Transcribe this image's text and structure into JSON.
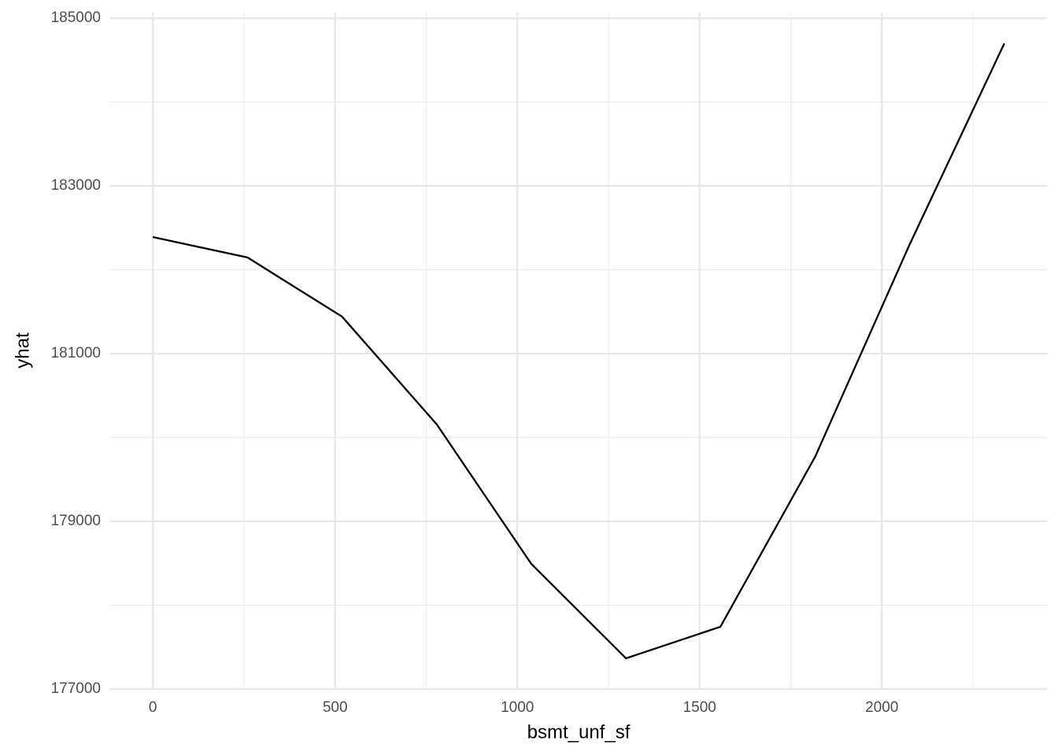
{
  "chart_data": {
    "type": "line",
    "x_label": "bsmt_unf_sf",
    "y_label": "yhat",
    "x": [
      0,
      260,
      519,
      779,
      1038,
      1298,
      1557,
      1817,
      2076,
      2336
    ],
    "series": [
      {
        "name": "yhat",
        "color": "#000000",
        "values": [
          182390,
          182146,
          181441,
          180155,
          178493,
          177366,
          177742,
          179770,
          182300,
          184700
        ]
      }
    ],
    "xlim": [
      -117,
      2453
    ],
    "ylim": [
      176999,
      185067
    ],
    "xticks": [
      0,
      500,
      1000,
      1500,
      2000
    ],
    "yticks": [
      177000,
      179000,
      181000,
      183000,
      185000
    ],
    "x_minor_ticks": [
      250,
      750,
      1250,
      1750,
      2250
    ],
    "y_minor_ticks": [
      178000,
      180000,
      182000,
      184000
    ],
    "grid": true
  }
}
